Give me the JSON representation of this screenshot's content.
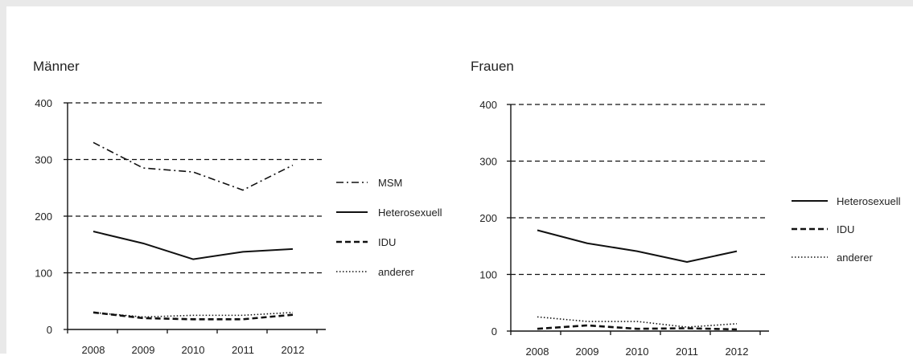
{
  "chart_data": [
    {
      "type": "line",
      "title": "Männer",
      "categories": [
        "2008",
        "2009",
        "2010",
        "2011",
        "2012"
      ],
      "ylim": [
        0,
        400
      ],
      "yticks": [
        0,
        100,
        200,
        300,
        400
      ],
      "grid": true,
      "legend_position": "right",
      "series": [
        {
          "name": "MSM",
          "style": "dashdot",
          "values": [
            330,
            285,
            278,
            246,
            290
          ]
        },
        {
          "name": "Heterosexuell",
          "style": "solid",
          "values": [
            173,
            152,
            124,
            137,
            142
          ]
        },
        {
          "name": "IDU",
          "style": "dashed",
          "values": [
            30,
            20,
            18,
            18,
            26
          ]
        },
        {
          "name": "anderer",
          "style": "dotted",
          "values": [
            30,
            22,
            25,
            25,
            30
          ]
        }
      ]
    },
    {
      "type": "line",
      "title": "Frauen",
      "categories": [
        "2008",
        "2009",
        "2010",
        "2011",
        "2012"
      ],
      "ylim": [
        0,
        400
      ],
      "yticks": [
        0,
        100,
        200,
        300,
        400
      ],
      "grid": true,
      "legend_position": "right",
      "series": [
        {
          "name": "Heterosexuell",
          "style": "solid",
          "values": [
            178,
            155,
            141,
            122,
            141
          ]
        },
        {
          "name": "IDU",
          "style": "dashed",
          "values": [
            4,
            10,
            4,
            5,
            3
          ]
        },
        {
          "name": "anderer",
          "style": "dotted",
          "values": [
            25,
            17,
            17,
            7,
            13
          ]
        }
      ]
    }
  ]
}
